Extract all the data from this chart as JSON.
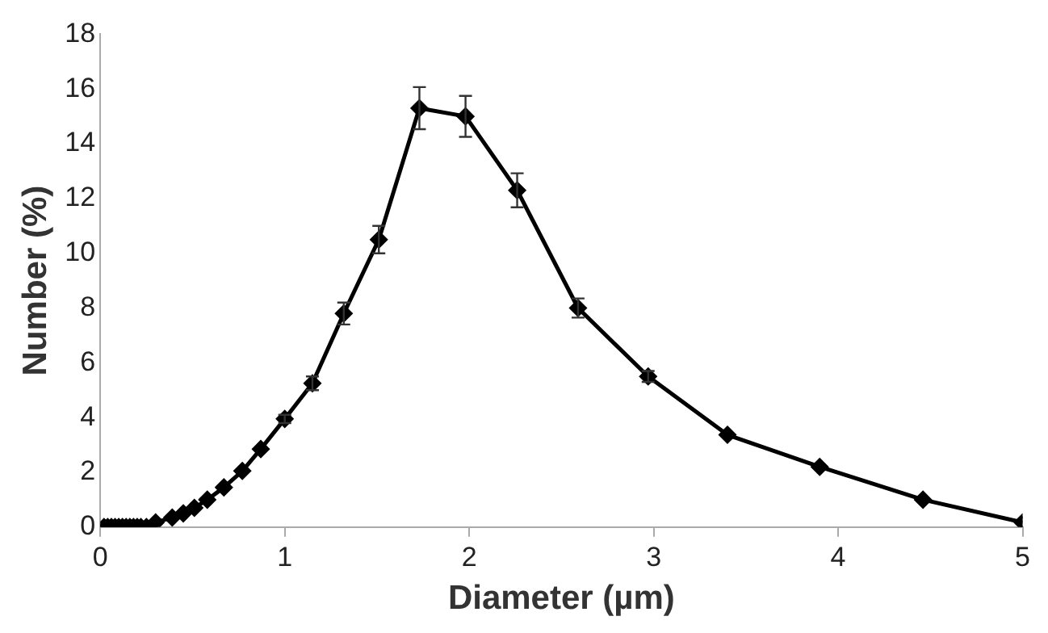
{
  "chart_data": {
    "type": "line",
    "xlabel": "Diameter (µm)",
    "ylabel": "Number (%)",
    "x": [
      0.02,
      0.04,
      0.06,
      0.08,
      0.1,
      0.12,
      0.14,
      0.16,
      0.18,
      0.2,
      0.22,
      0.25,
      0.3,
      0.39,
      0.45,
      0.51,
      0.58,
      0.67,
      0.77,
      0.87,
      1.0,
      1.15,
      1.32,
      1.51,
      1.73,
      1.98,
      2.26,
      2.59,
      2.97,
      3.4,
      3.9,
      4.46,
      5.0
    ],
    "series": [
      {
        "color": "#000000",
        "values": [
          0,
          0,
          0,
          0,
          0,
          0,
          0,
          0,
          0,
          0,
          0,
          0,
          0.17,
          0.35,
          0.5,
          0.7,
          1.0,
          1.45,
          2.05,
          2.85,
          3.95,
          5.25,
          7.8,
          10.5,
          15.3,
          15.0,
          12.3,
          8.0,
          5.5,
          3.37,
          2.2,
          1.0,
          0.17
        ],
        "errors": [
          null,
          null,
          null,
          null,
          null,
          null,
          null,
          null,
          null,
          null,
          null,
          null,
          null,
          null,
          null,
          null,
          null,
          null,
          null,
          null,
          0.15,
          0.25,
          0.4,
          0.5,
          0.77,
          0.75,
          0.62,
          0.35,
          0.2,
          null,
          null,
          null,
          null
        ]
      }
    ],
    "xlim": [
      0,
      5
    ],
    "xticks": [
      0,
      1,
      2,
      3,
      4,
      5
    ],
    "ylim": [
      0,
      18
    ],
    "yticks": [
      0,
      2,
      4,
      6,
      8,
      10,
      12,
      14,
      16,
      18
    ],
    "grid": false,
    "legend": false,
    "marker": "diamond",
    "line_style": "solid"
  }
}
